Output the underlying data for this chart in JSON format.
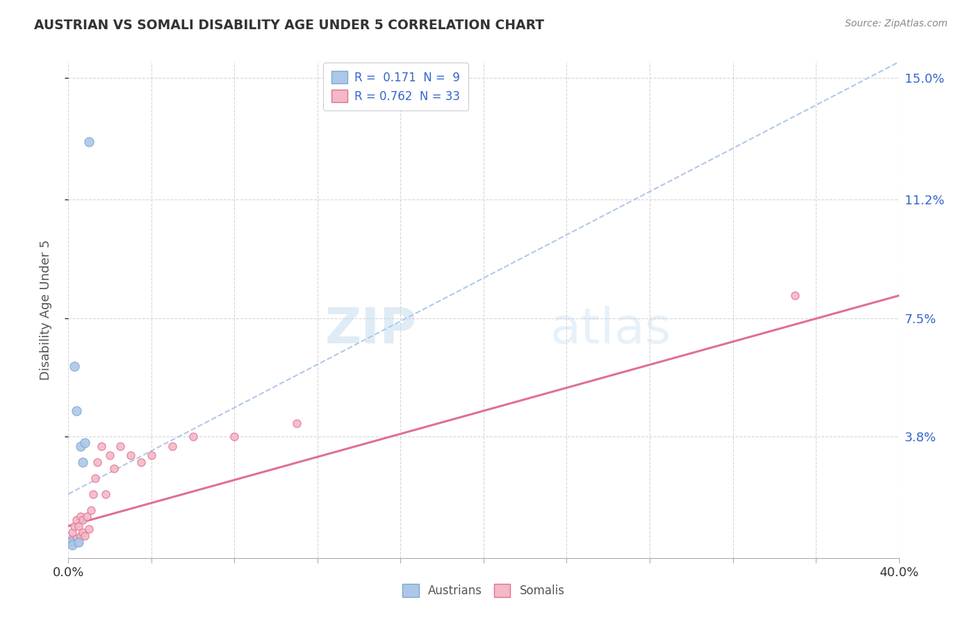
{
  "title": "AUSTRIAN VS SOMALI DISABILITY AGE UNDER 5 CORRELATION CHART",
  "source": "Source: ZipAtlas.com",
  "ylabel": "Disability Age Under 5",
  "xlim": [
    0.0,
    0.4
  ],
  "ylim": [
    0.0,
    0.155
  ],
  "ytick_vals": [
    0.038,
    0.075,
    0.112,
    0.15
  ],
  "ytick_labels": [
    "3.8%",
    "7.5%",
    "11.2%",
    "15.0%"
  ],
  "background_color": "#ffffff",
  "grid_color": "#cccccc",
  "watermark_zip": "ZIP",
  "watermark_atlas": "atlas",
  "austrians": {
    "x": [
      0.001,
      0.002,
      0.003,
      0.004,
      0.005,
      0.006,
      0.007,
      0.008,
      0.01
    ],
    "y": [
      0.005,
      0.004,
      0.06,
      0.046,
      0.005,
      0.035,
      0.03,
      0.036,
      0.13
    ],
    "color": "#aec6e8",
    "edgecolor": "#7aaad0",
    "size": 90,
    "R": "0.171",
    "N": "9",
    "trend_x": [
      0.0,
      0.4
    ],
    "trend_y": [
      0.02,
      0.155
    ],
    "trend_color": "#b0c8e8",
    "trend_style": "--",
    "trend_lw": 1.5
  },
  "somalis": {
    "x": [
      0.001,
      0.002,
      0.002,
      0.003,
      0.003,
      0.004,
      0.004,
      0.005,
      0.005,
      0.006,
      0.006,
      0.007,
      0.007,
      0.008,
      0.009,
      0.01,
      0.011,
      0.012,
      0.013,
      0.014,
      0.016,
      0.018,
      0.02,
      0.022,
      0.025,
      0.03,
      0.035,
      0.04,
      0.05,
      0.06,
      0.08,
      0.11,
      0.35
    ],
    "y": [
      0.005,
      0.006,
      0.008,
      0.005,
      0.01,
      0.006,
      0.012,
      0.005,
      0.01,
      0.007,
      0.013,
      0.008,
      0.012,
      0.007,
      0.013,
      0.009,
      0.015,
      0.02,
      0.025,
      0.03,
      0.035,
      0.02,
      0.032,
      0.028,
      0.035,
      0.032,
      0.03,
      0.032,
      0.035,
      0.038,
      0.038,
      0.042,
      0.082
    ],
    "color": "#f4b8c8",
    "edgecolor": "#e07090",
    "size": 65,
    "R": "0.762",
    "N": "33",
    "trend_x": [
      0.0,
      0.4
    ],
    "trend_y": [
      0.01,
      0.082
    ],
    "trend_color": "#e07090",
    "trend_style": "-",
    "trend_lw": 2.2
  },
  "legend_labels": [
    "Austrians",
    "Somalis"
  ],
  "legend_colors": [
    "#aec6e8",
    "#f4b8c8"
  ],
  "legend_edgecolors": [
    "#7aaad0",
    "#e07090"
  ],
  "R_color": "#3366cc",
  "N_color": "#cc3333",
  "title_color": "#333333",
  "axis_label_color": "#555555",
  "ytick_color": "#3366cc",
  "source_color": "#888888"
}
